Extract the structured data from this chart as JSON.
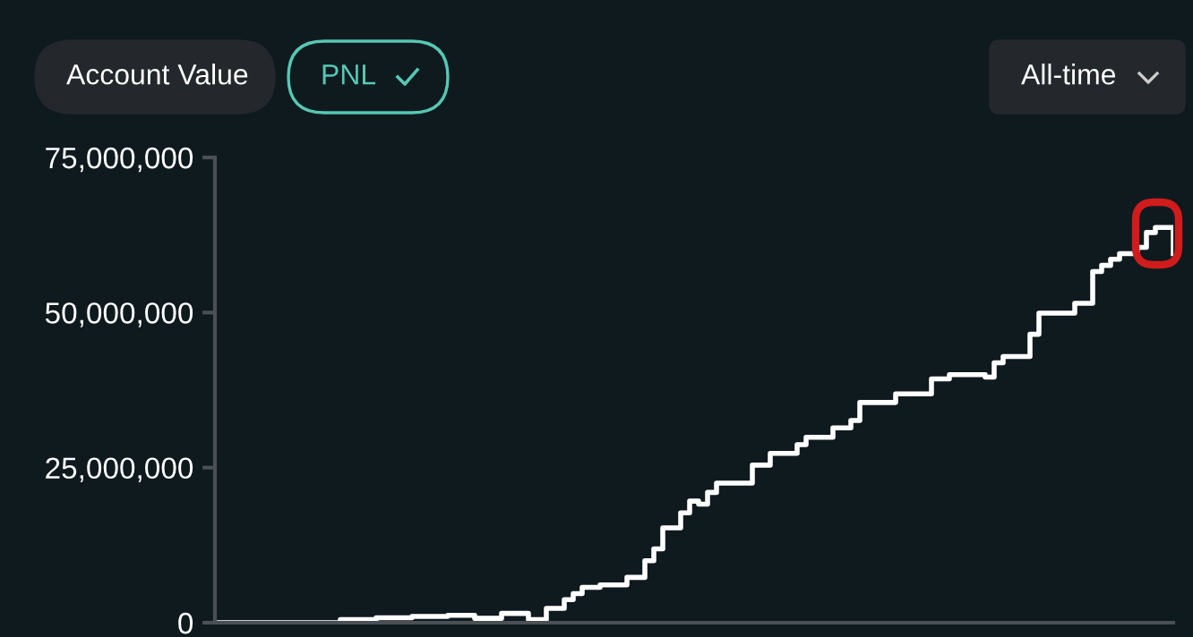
{
  "chart_data": {
    "type": "step",
    "annotations": [
      "Account Value",
      "PNL",
      "All-time"
    ],
    "categories": [
      null,
      null,
      null,
      null,
      null,
      null,
      null,
      null,
      null,
      null,
      null,
      null,
      null,
      null,
      null,
      null,
      null,
      null,
      null,
      null,
      null,
      null,
      null,
      null,
      null,
      null,
      null,
      null,
      null,
      null,
      null,
      null,
      null,
      null,
      null,
      null,
      null,
      null,
      null,
      null,
      null,
      null,
      null,
      null,
      null,
      null,
      null,
      null,
      null,
      null,
      null,
      null,
      null,
      null,
      null,
      null,
      null,
      null,
      null,
      null,
      null,
      null,
      null,
      null,
      null,
      null,
      null,
      null,
      null,
      null,
      null,
      null,
      null,
      null,
      null,
      null,
      null,
      null,
      null,
      null,
      null,
      null,
      null,
      null,
      null,
      null,
      null,
      null,
      null,
      null,
      null,
      null,
      null,
      null,
      null,
      null,
      null,
      null,
      null,
      null,
      null,
      null,
      null,
      null,
      null,
      null,
      null,
      null
    ],
    "series": [
      {
        "color": "#ffffff",
        "values": [
          0,
          0,
          0,
          0,
          0,
          0,
          0,
          0,
          0,
          0,
          0,
          0,
          0,
          0,
          500000,
          500000,
          500000,
          500000,
          800000,
          800000,
          800000,
          800000,
          1000000,
          1000000,
          1000000,
          1000000,
          1200000,
          1200000,
          1200000,
          700000,
          700000,
          700000,
          1500000,
          1500000,
          1500000,
          500000,
          500000,
          2300000,
          2300000,
          3700000,
          4700000,
          5700000,
          5700000,
          6100000,
          6100000,
          6100000,
          7300000,
          7300000,
          10000000,
          11900000,
          15300000,
          15300000,
          17700000,
          19600000,
          19100000,
          21000000,
          22500000,
          22500000,
          22500000,
          22500000,
          25400000,
          25400000,
          27300000,
          27300000,
          27300000,
          28700000,
          29900000,
          29900000,
          29900000,
          31400000,
          31400000,
          32600000,
          35500000,
          35500000,
          35500000,
          35500000,
          36900000,
          36900000,
          36900000,
          36900000,
          39300000,
          39300000,
          40000000,
          40000000,
          40000000,
          40000000,
          39600000,
          41900000,
          42900000,
          42900000,
          42900000,
          46500000,
          49900000,
          49900000,
          49900000,
          49900000,
          51500000,
          51500000,
          56600000,
          57600000,
          58600000,
          59500000,
          59500000,
          60500000,
          62900000,
          63700000,
          63700000,
          59500000
        ]
      }
    ],
    "ylim": [
      0,
      75000000
    ],
    "yticks": [
      {
        "value": 0,
        "label": "0"
      },
      {
        "value": 25000000,
        "label": "25,000,000"
      },
      {
        "value": 50000000,
        "label": "50,000,000"
      },
      {
        "value": 75000000,
        "label": "75,000,000"
      }
    ],
    "grid": false,
    "legend": false,
    "marker": "none",
    "line_style": "solid",
    "tick_labels": "y"
  }
}
